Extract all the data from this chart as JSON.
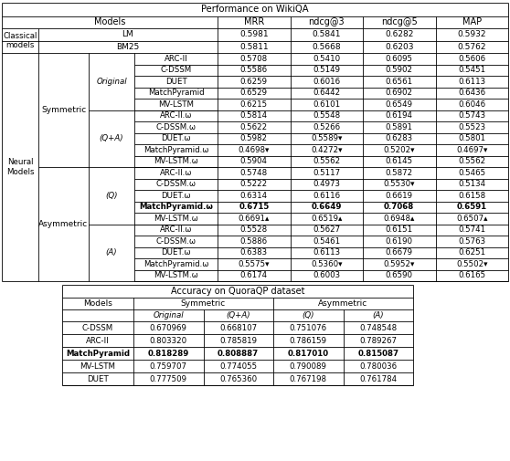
{
  "title1": "Performance on WikiQA",
  "title2": "Accuracy on QuoraQP dataset",
  "classical_rows": [
    [
      "Classical\nmodels",
      "LM",
      "0.5981",
      "0.5841",
      "0.6282",
      "0.5932"
    ],
    [
      "",
      "BM25",
      "0.5811",
      "0.5668",
      "0.6203",
      "0.5762"
    ]
  ],
  "neural_symmetric_original": [
    [
      "ARC-II",
      "0.5708",
      "0.5410",
      "0.6095",
      "0.5606"
    ],
    [
      "C-DSSM",
      "0.5586",
      "0.5149",
      "0.5902",
      "0.5451"
    ],
    [
      "DUET",
      "0.6259",
      "0.6016",
      "0.6561",
      "0.6113"
    ],
    [
      "MatchPyramid",
      "0.6529",
      "0.6442",
      "0.6902",
      "0.6436"
    ],
    [
      "MV-LSTM",
      "0.6215",
      "0.6101",
      "0.6549",
      "0.6046"
    ]
  ],
  "neural_symmetric_qpa": [
    [
      "ARC-II.ω",
      "0.5814",
      "0.5548",
      "0.6194",
      "0.5743"
    ],
    [
      "C-DSSM.ω",
      "0.5622",
      "0.5266",
      "0.5891",
      "0.5523"
    ],
    [
      "DUET.ω",
      "0.5982",
      "0.5589▾",
      "0.6283",
      "0.5801"
    ],
    [
      "MatchPyramid.ω",
      "0.4698▾",
      "0.4272▾",
      "0.5202▾",
      "0.4697▾"
    ],
    [
      "MV-LSTM.ω",
      "0.5904",
      "0.5562",
      "0.6145",
      "0.5562"
    ]
  ],
  "neural_asymmetric_q": [
    [
      "ARC-II.ω",
      "0.5748",
      "0.5117",
      "0.5872",
      "0.5465"
    ],
    [
      "C-DSSM.ω",
      "0.5222",
      "0.4973",
      "0.5530▾",
      "0.5134"
    ],
    [
      "DUET.ω",
      "0.6314",
      "0.6116",
      "0.6619",
      "0.6158"
    ],
    [
      "MatchPyramid.ω",
      "0.6715",
      "0.6649",
      "0.7068",
      "0.6591"
    ],
    [
      "MV-LSTM.ω",
      "0.6691▴",
      "0.6519▴",
      "0.6948▴",
      "0.6507▴"
    ]
  ],
  "neural_asymmetric_a": [
    [
      "ARC-II.ω",
      "0.5528",
      "0.5627",
      "0.6151",
      "0.5741"
    ],
    [
      "C-DSSM.ω",
      "0.5886",
      "0.5461",
      "0.6190",
      "0.5763"
    ],
    [
      "DUET.ω",
      "0.6383",
      "0.6113",
      "0.6679",
      "0.6251"
    ],
    [
      "MatchPyramid.ω",
      "0.5575▾",
      "0.5360▾",
      "0.5952▾",
      "0.5502▾"
    ],
    [
      "MV-LSTM.ω",
      "0.6174",
      "0.6003",
      "0.6590",
      "0.6165"
    ]
  ],
  "quoraqp_models": [
    "C-DSSM",
    "ARC-II",
    "MatchPyramid",
    "MV-LSTM",
    "DUET"
  ],
  "quoraqp_data": [
    [
      "0.670969",
      "0.668107",
      "0.751076",
      "0.748548"
    ],
    [
      "0.803320",
      "0.785819",
      "0.786159",
      "0.789267"
    ],
    [
      "0.818289",
      "0.808887",
      "0.817010",
      "0.815087"
    ],
    [
      "0.759707",
      "0.774055",
      "0.790089",
      "0.780036"
    ],
    [
      "0.777509",
      "0.765360",
      "0.767198",
      "0.761784"
    ]
  ],
  "quoraqp_bold_row": 2,
  "wikiqa_bold_row": 13,
  "fig_w": 5.58,
  "fig_h": 5.05,
  "dpi": 100
}
